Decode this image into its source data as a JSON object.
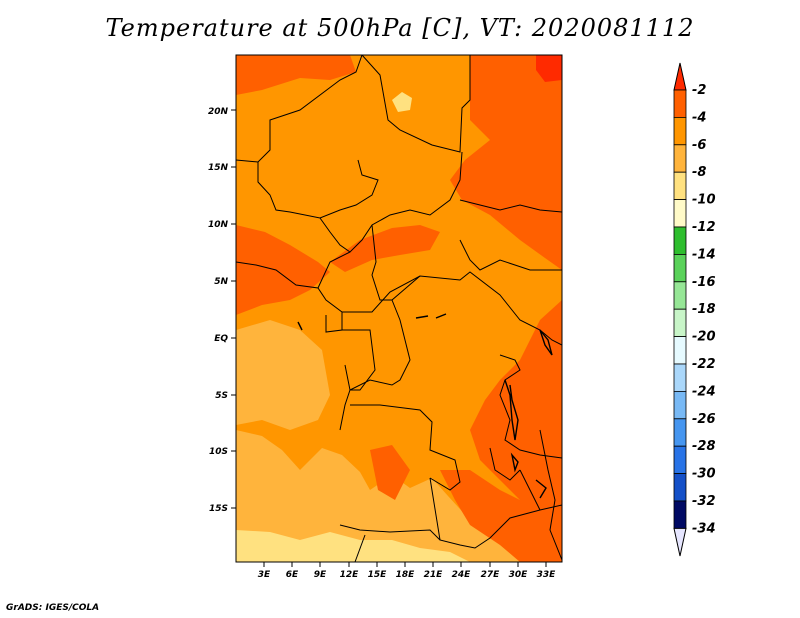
{
  "title": "Temperature at 500hPa [C], VT: 2020081112",
  "credit": "GrADS: IGES/COLA",
  "map": {
    "lat_labels": [
      "20N",
      "15N",
      "10N",
      "5N",
      "EQ",
      "5S",
      "10S",
      "15S"
    ],
    "lon_labels": [
      "3E",
      "6E",
      "9E",
      "12E",
      "15E",
      "18E",
      "21E",
      "24E",
      "27E",
      "30E",
      "33E"
    ]
  },
  "colorbar": {
    "labels": [
      "-2",
      "-4",
      "-6",
      "-8",
      "-10",
      "-12",
      "-14",
      "-16",
      "-18",
      "-20",
      "-22",
      "-24",
      "-26",
      "-28",
      "-30",
      "-32",
      "-34"
    ],
    "colors": [
      "#ff2a00",
      "#ff6000",
      "#ff9600",
      "#ffb43c",
      "#ffe180",
      "#fffac8",
      "#2ebe2e",
      "#5ad25a",
      "#96e696",
      "#c8f5c8",
      "#e6faff",
      "#aad7fa",
      "#78b9f5",
      "#4696f0",
      "#2873e6",
      "#1450c8",
      "#0a2d9b",
      "#000a64",
      "#e6e6ff"
    ]
  },
  "colors": {
    "base": "#ff9600",
    "warmer": "#ff6000",
    "warmest": "#ff2a00",
    "cooler": "#ffb43c",
    "coolest": "#ffe180"
  }
}
